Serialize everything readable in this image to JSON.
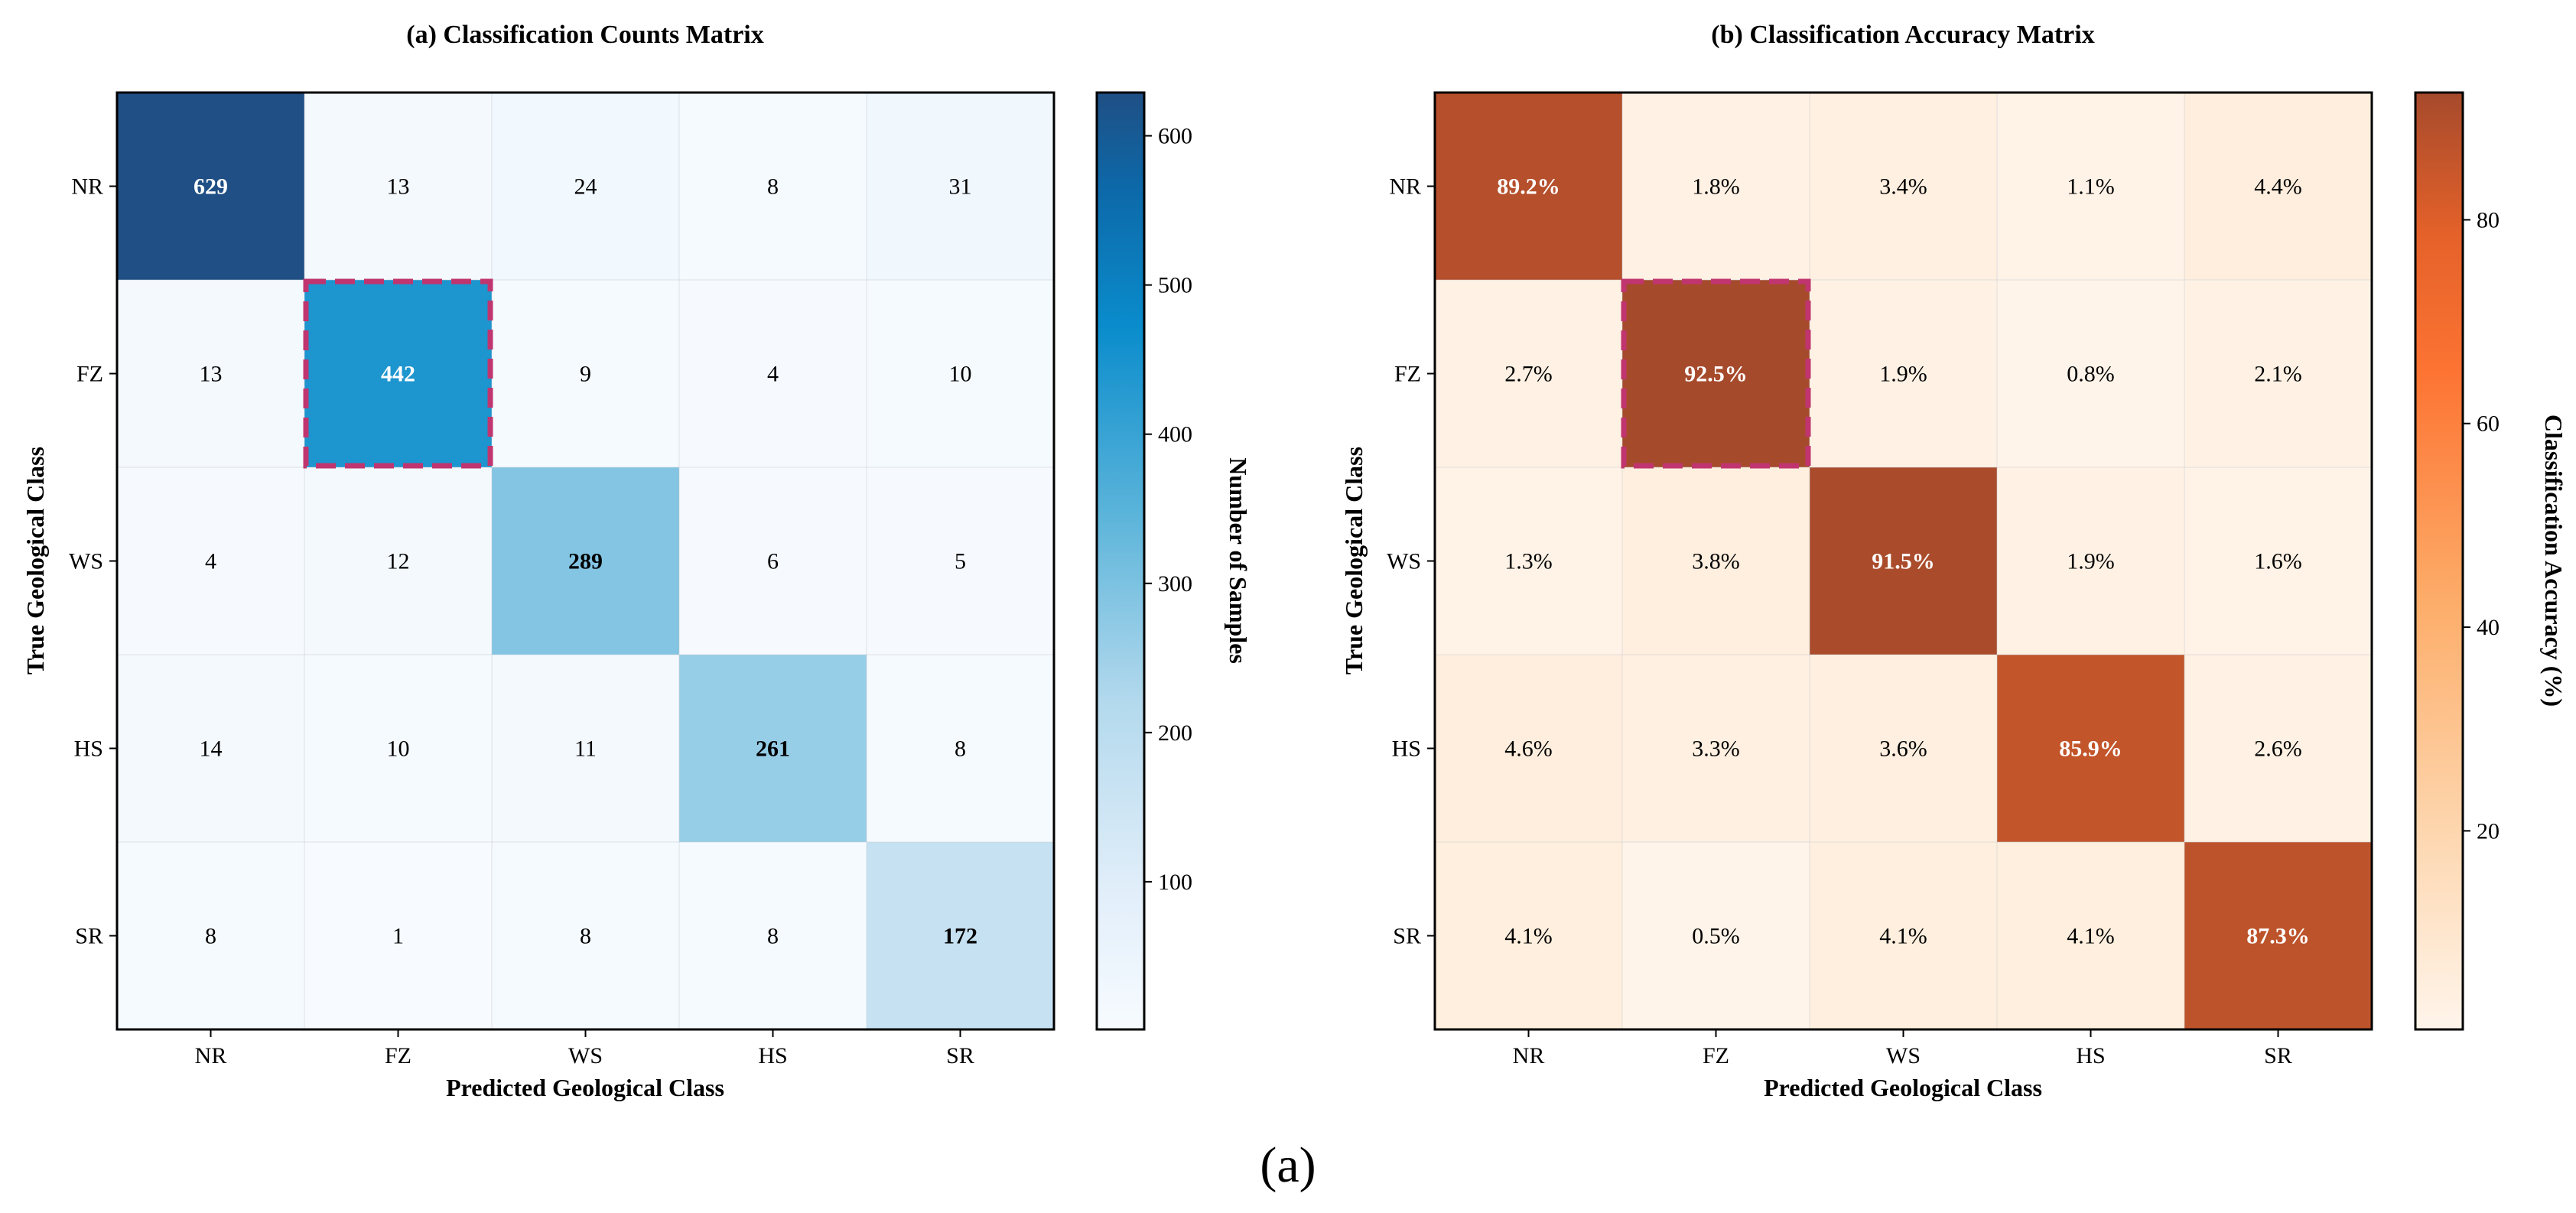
{
  "figure": {
    "caption": "(a)"
  },
  "chart_data": [
    {
      "type": "heatmap",
      "title": "(a) Classification Counts Matrix",
      "xlabel": "Predicted Geological Class",
      "ylabel": "True Geological Class",
      "x_categories": [
        "NR",
        "FZ",
        "WS",
        "HS",
        "SR"
      ],
      "y_categories": [
        "NR",
        "FZ",
        "WS",
        "HS",
        "SR"
      ],
      "values": [
        [
          629,
          13,
          24,
          8,
          31
        ],
        [
          13,
          442,
          9,
          4,
          10
        ],
        [
          4,
          12,
          289,
          6,
          5
        ],
        [
          14,
          10,
          11,
          261,
          8
        ],
        [
          8,
          1,
          8,
          8,
          172
        ]
      ],
      "cell_labels": [
        [
          "629",
          "13",
          "24",
          "8",
          "31"
        ],
        [
          "13",
          "442",
          "9",
          "4",
          "10"
        ],
        [
          "4",
          "12",
          "289",
          "6",
          "5"
        ],
        [
          "14",
          "10",
          "11",
          "261",
          "8"
        ],
        [
          "8",
          "1",
          "8",
          "8",
          "172"
        ]
      ],
      "colormap": "Blues",
      "color_range": [
        0,
        629
      ],
      "colorbar": {
        "label": "Number of Samples",
        "ticks": [
          100,
          200,
          300,
          400,
          500,
          600
        ],
        "range": [
          1,
          629
        ]
      },
      "highlight_cell": {
        "row": 1,
        "col": 1,
        "color": "#c0356f",
        "style": "dashed"
      },
      "grid": true
    },
    {
      "type": "heatmap",
      "title": "(b) Classification Accuracy Matrix",
      "xlabel": "Predicted Geological Class",
      "ylabel": "True Geological Class",
      "x_categories": [
        "NR",
        "FZ",
        "WS",
        "HS",
        "SR"
      ],
      "y_categories": [
        "NR",
        "FZ",
        "WS",
        "HS",
        "SR"
      ],
      "values": [
        [
          89.2,
          1.8,
          3.4,
          1.1,
          4.4
        ],
        [
          2.7,
          92.5,
          1.9,
          0.8,
          2.1
        ],
        [
          1.3,
          3.8,
          91.5,
          1.9,
          1.6
        ],
        [
          4.6,
          3.3,
          3.6,
          85.9,
          2.6
        ],
        [
          4.1,
          0.5,
          4.1,
          4.1,
          87.3
        ]
      ],
      "cell_labels": [
        [
          "89.2%",
          "1.8%",
          "3.4%",
          "1.1%",
          "4.4%"
        ],
        [
          "2.7%",
          "92.5%",
          "1.9%",
          "0.8%",
          "2.1%"
        ],
        [
          "1.3%",
          "3.8%",
          "91.5%",
          "1.9%",
          "1.6%"
        ],
        [
          "4.6%",
          "3.3%",
          "3.6%",
          "85.9%",
          "2.6%"
        ],
        [
          "4.1%",
          "0.5%",
          "4.1%",
          "4.1%",
          "87.3%"
        ]
      ],
      "colormap": "Oranges",
      "color_range": [
        0,
        92.5
      ],
      "colorbar": {
        "label": "Classification Accuracy (%)",
        "ticks": [
          20,
          40,
          60,
          80
        ],
        "range": [
          0.5,
          92.5
        ]
      },
      "highlight_cell": {
        "row": 1,
        "col": 1,
        "color": "#c0356f",
        "style": "dashed"
      },
      "grid": true
    }
  ]
}
